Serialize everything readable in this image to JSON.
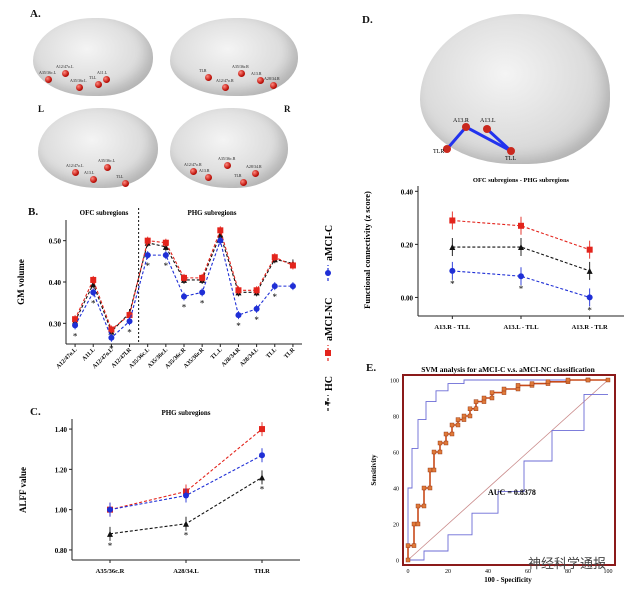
{
  "panelA": {
    "letter": "A.",
    "L": "L",
    "R": "R",
    "brains": [
      {
        "labels": [
          "A35/36c.L",
          "A12/47o.L",
          "A35/36r.L",
          "TLL",
          "A11.L"
        ]
      },
      {
        "labels": [
          "TLR",
          "A12/47o.R",
          "A35/36r.R",
          "A13.R",
          "A28/34.R"
        ]
      },
      {
        "labels": [
          "A12/47o.L",
          "A13.L",
          "A35/36c.L",
          "TLL"
        ]
      },
      {
        "labels": [
          "A12/47o.R",
          "A13.R",
          "A35/36c.R",
          "TLR",
          "A28/34.R"
        ]
      }
    ]
  },
  "panelB": {
    "letter": "B.",
    "ylabel": "GM volume",
    "section_left": "OFC subregions",
    "section_right": "PHG subregions",
    "legend": {
      "hc": "HC",
      "ncn": "aMCI-NC",
      "c": "aMCI-C"
    },
    "colors": {
      "hc": "#111111",
      "nc": "#e3241c",
      "c": "#1f2fd6"
    }
  },
  "panelC": {
    "letter": "C.",
    "title": "PHG subregions",
    "ylabel": "ALFF value"
  },
  "panelD": {
    "letter": "D.",
    "labels": {
      "a13r": "A13.R",
      "a13l": "A13.L",
      "tlr": "TLR",
      "tll": "TLL"
    },
    "chart_title": "OFC subregions - PHG subregions",
    "ylabel": "Functional connectivity (z score)"
  },
  "panelE": {
    "letter": "E.",
    "title": "SVM analysis for aMCI-C v.s. aMCI-NC classification",
    "ylabel": "Sensitivity",
    "xlabel": "100 - Specificity",
    "auc": "AUC = 0.8378"
  },
  "watermark": "神经科学通报",
  "chart_data": [
    {
      "type": "line",
      "title": "",
      "ylabel": "GM volume",
      "categories": [
        "A12/47o.L",
        "A11.L",
        "A12/47o.L",
        "A12/47l.R",
        "A35/36c.L",
        "A35/36r.L",
        "A35/36c.R",
        "A35/36r.R",
        "TL.L",
        "A28/34.R",
        "A28/34.L",
        "TLL",
        "TLR"
      ],
      "ylim": [
        0.25,
        0.55
      ],
      "yticks": [
        0.3,
        0.4,
        0.5
      ],
      "series": [
        {
          "name": "HC",
          "values": [
            0.305,
            0.395,
            0.28,
            0.325,
            0.495,
            0.485,
            0.405,
            0.405,
            0.515,
            0.375,
            0.375,
            0.455,
            0.445
          ]
        },
        {
          "name": "aMCI-NC",
          "values": [
            0.31,
            0.405,
            0.285,
            0.32,
            0.5,
            0.495,
            0.41,
            0.41,
            0.525,
            0.38,
            0.38,
            0.46,
            0.44
          ]
        },
        {
          "name": "aMCI-C",
          "values": [
            0.295,
            0.375,
            0.265,
            0.305,
            0.465,
            0.465,
            0.365,
            0.375,
            0.5,
            0.32,
            0.335,
            0.39,
            0.39
          ]
        }
      ],
      "annotations": [
        "*",
        "*",
        "*",
        "*",
        "*",
        "*",
        "*",
        "*",
        "*",
        "*",
        "*"
      ]
    },
    {
      "type": "line",
      "title": "PHG subregions",
      "ylabel": "ALFF value",
      "categories": [
        "A35/36c.R",
        "A28/34.L",
        "TH.R"
      ],
      "ylim": [
        0.75,
        1.45
      ],
      "yticks": [
        0.8,
        1.0,
        1.2,
        1.4
      ],
      "series": [
        {
          "name": "HC",
          "values": [
            0.88,
            0.93,
            1.16
          ]
        },
        {
          "name": "aMCI-NC",
          "values": [
            1.0,
            1.09,
            1.4
          ]
        },
        {
          "name": "aMCI-C",
          "values": [
            1.0,
            1.07,
            1.27
          ]
        }
      ],
      "annotations": [
        "*",
        "*",
        "*"
      ]
    },
    {
      "type": "line",
      "title": "OFC subregions - PHG subregions",
      "ylabel": "Functional connectivity (z score)",
      "categories": [
        "A13.R - TLL",
        "A13.L - TLL",
        "A13.R - TLR"
      ],
      "ylim": [
        -0.07,
        0.42
      ],
      "yticks": [
        0.0,
        0.2,
        0.4
      ],
      "series": [
        {
          "name": "HC",
          "values": [
            0.19,
            0.19,
            0.1
          ]
        },
        {
          "name": "aMCI-NC",
          "values": [
            0.29,
            0.27,
            0.18
          ]
        },
        {
          "name": "aMCI-C",
          "values": [
            0.1,
            0.08,
            0.0
          ]
        }
      ],
      "annotations": [
        "*",
        "*",
        "*"
      ]
    },
    {
      "type": "line",
      "title": "SVM analysis for aMCI-C v.s. aMCI-NC classification",
      "xlabel": "100 - Specificity",
      "ylabel": "Sensitivity",
      "xlim": [
        0,
        100
      ],
      "ylim": [
        0,
        100
      ],
      "xticks": [
        0,
        20,
        40,
        60,
        80,
        100
      ],
      "yticks": [
        0,
        20,
        40,
        60,
        80,
        100
      ],
      "series": [
        {
          "name": "ROC",
          "x": [
            0,
            0,
            3,
            3,
            5,
            5,
            8,
            8,
            11,
            11,
            13,
            13,
            16,
            16,
            19,
            19,
            22,
            22,
            25,
            25,
            28,
            28,
            31,
            31,
            34,
            34,
            38,
            38,
            42,
            42,
            48,
            48,
            55,
            55,
            62,
            62,
            70,
            70,
            80,
            80,
            90,
            90,
            100
          ],
          "y": [
            0,
            8,
            8,
            20,
            20,
            30,
            30,
            40,
            40,
            50,
            50,
            60,
            60,
            65,
            65,
            70,
            70,
            75,
            75,
            78,
            78,
            80,
            80,
            84,
            84,
            88,
            88,
            90,
            90,
            93,
            93,
            95,
            95,
            97,
            97,
            98,
            98,
            99,
            99,
            100,
            100,
            100,
            100
          ]
        },
        {
          "name": "CI upper",
          "x": [
            0,
            0,
            2,
            2,
            5,
            5,
            9,
            9,
            14,
            14,
            20,
            20,
            28,
            28,
            100
          ],
          "y": [
            0,
            40,
            40,
            62,
            62,
            78,
            78,
            88,
            88,
            94,
            94,
            98,
            98,
            100,
            100
          ]
        },
        {
          "name": "CI lower",
          "x": [
            0,
            8,
            8,
            20,
            20,
            32,
            32,
            45,
            45,
            58,
            58,
            72,
            72,
            88,
            88,
            100
          ],
          "y": [
            0,
            0,
            5,
            5,
            14,
            14,
            26,
            26,
            38,
            38,
            55,
            55,
            72,
            72,
            92,
            92
          ]
        },
        {
          "name": "Reference",
          "x": [
            0,
            100
          ],
          "y": [
            0,
            100
          ]
        }
      ],
      "auc": "AUC = 0.8378"
    }
  ]
}
